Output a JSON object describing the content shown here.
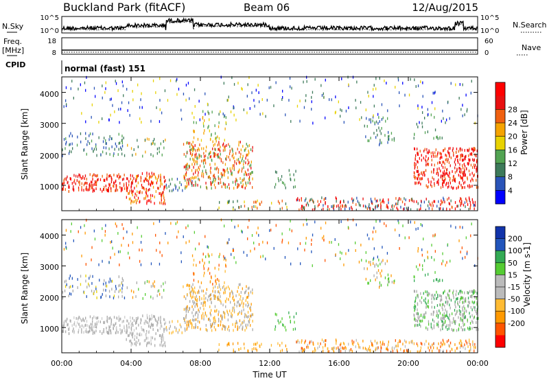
{
  "header": {
    "station": "Buckland Park (fitACF)",
    "beam": "Beam 06",
    "date": "12/Aug/2015"
  },
  "left_labels": {
    "nsky": "N.Sky",
    "freq": "Freq.",
    "freq_unit": "[MHz]",
    "cpid": "CPID"
  },
  "right_labels": {
    "nsearch": "N.Search",
    "nave": "Nave"
  },
  "cpid_text": "normal (fast) 151",
  "colors": {
    "power": [
      "#0000ff",
      "#2a54b8",
      "#3d7a5a",
      "#52a352",
      "#e8d200",
      "#f5a300",
      "#f06010",
      "#e81010",
      "#ff0000"
    ],
    "velocity": [
      "#ff0000",
      "#ff5500",
      "#ff9900",
      "#ffbb33",
      "#bbbbbb",
      "#bbbbbb",
      "#55cc33",
      "#33aa55",
      "#2255bb",
      "#1133aa"
    ],
    "ground_scatter": "#aaaaaa"
  },
  "chart_data": [
    {
      "type": "line",
      "name": "noise-panel",
      "left_axis": {
        "label": "N.Sky",
        "ticks": [
          "10^5",
          "10^0"
        ]
      },
      "right_axis": {
        "label": "N.Search",
        "ticks": [
          "10^5",
          "10^0"
        ]
      },
      "xlim": [
        "00:00",
        "24:00"
      ]
    },
    {
      "type": "line",
      "name": "freq-nave-panel",
      "left_axis": {
        "label": "Freq. [MHz]",
        "ticks": [
          "18",
          "8"
        ]
      },
      "right_axis": {
        "label": "Nave",
        "ticks": [
          "60",
          "0"
        ]
      },
      "xlim": [
        "00:00",
        "24:00"
      ]
    },
    {
      "type": "heatmap",
      "name": "power-panel",
      "ylabel": "Slant Range [km]",
      "ylim": [
        180,
        4500
      ],
      "yticks": [
        "1000",
        "2000",
        "3000",
        "4000"
      ],
      "xlim": [
        "00:00",
        "24:00"
      ],
      "colorbar": {
        "label": "Power [dB]",
        "ticks": [
          "4",
          "8",
          "12",
          "16",
          "20",
          "24",
          "28"
        ]
      }
    },
    {
      "type": "heatmap",
      "name": "velocity-panel",
      "ylabel": "Slant Range [km]",
      "xlabel": "Time UT",
      "ylim": [
        180,
        4500
      ],
      "yticks": [
        "1000",
        "2000",
        "3000",
        "4000"
      ],
      "xticks": [
        "00:00",
        "04:00",
        "08:00",
        "12:00",
        "16:00",
        "20:00",
        "00:00"
      ],
      "xlim": [
        "00:00",
        "24:00"
      ],
      "colorbar": {
        "label": "Velocity [m s-1]",
        "ticks": [
          "200",
          "100",
          "50",
          "15",
          "-15",
          "-50",
          "-100",
          "-200"
        ]
      }
    }
  ]
}
